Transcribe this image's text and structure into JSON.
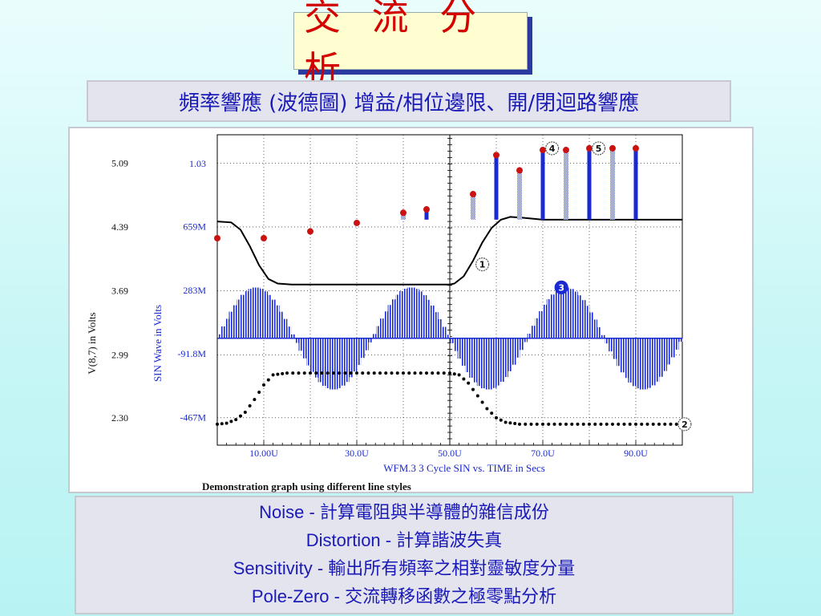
{
  "header": {
    "title": "交 流 分 析",
    "subtitle": "頻率響應 (波德圖) 增益/相位邊限、開/閉迴路響應"
  },
  "chart_data": {
    "type": "line",
    "title": "WFM.3   3 Cycle SIN vs. TIME in Secs",
    "caption": "Demonstration graph using different line styles",
    "xlabel": "",
    "x_ticks": [
      "10.00U",
      "30.0U",
      "50.0U",
      "70.0U",
      "90.0U"
    ],
    "x_tick_values": [
      10,
      30,
      50,
      70,
      90
    ],
    "xlim": [
      0,
      100
    ],
    "y_left": {
      "label": "V(8,7) in Volts",
      "ticks": [
        "5.09",
        "4.39",
        "3.69",
        "2.99",
        "2.30"
      ],
      "tick_values": [
        5.09,
        4.39,
        3.69,
        2.99,
        2.3
      ],
      "lim": [
        2.0,
        5.4
      ]
    },
    "y_right": {
      "label": "SIN Wave in Volts",
      "ticks": [
        "1.03",
        "659M",
        "283M",
        "-91.8M",
        "-467M"
      ],
      "tick_values": [
        1.03,
        0.659,
        0.283,
        -0.0918,
        -0.467
      ],
      "lim": [
        -0.63,
        1.2
      ]
    },
    "series": [
      {
        "name": "1",
        "style": "solid",
        "color": "#000000",
        "x": [
          0,
          3,
          5,
          7,
          9,
          11,
          13,
          16,
          20,
          30,
          40,
          50,
          51,
          53,
          55,
          57,
          59,
          61,
          63,
          66,
          70,
          80,
          90,
          100
        ],
        "y": [
          4.45,
          4.44,
          4.36,
          4.18,
          3.97,
          3.82,
          3.77,
          3.76,
          3.76,
          3.76,
          3.76,
          3.76,
          3.77,
          3.85,
          4.02,
          4.22,
          4.38,
          4.47,
          4.5,
          4.49,
          4.47,
          4.47,
          4.47,
          4.47
        ]
      },
      {
        "name": "2",
        "style": "dotted",
        "color": "#000000",
        "x": [
          0,
          2,
          4,
          6,
          8,
          10,
          12,
          15,
          20,
          30,
          40,
          50,
          52,
          54,
          56,
          58,
          60,
          62,
          65,
          70,
          80,
          90,
          100
        ],
        "y": [
          2.23,
          2.24,
          2.28,
          2.36,
          2.5,
          2.66,
          2.77,
          2.79,
          2.79,
          2.79,
          2.79,
          2.79,
          2.77,
          2.68,
          2.54,
          2.4,
          2.3,
          2.25,
          2.23,
          2.23,
          2.23,
          2.23,
          2.23
        ]
      },
      {
        "name": "3",
        "style": "hatched-bars",
        "color": "#1a2ad0",
        "amplitude": 0.3,
        "offset": 0.0,
        "cycles": 3,
        "period": 33.3
      },
      {
        "name": "4",
        "style": "solid-stems",
        "color": "#1a2ad0",
        "marker_color": "#cc1111",
        "x": [
          45,
          60,
          70,
          80,
          90
        ],
        "y": [
          0.76,
          1.08,
          1.11,
          1.12,
          1.12
        ]
      },
      {
        "name": "5",
        "style": "hatched-stems",
        "color": "#6677cc",
        "marker_color": "#cc1111",
        "x": [
          0,
          10,
          20,
          30,
          40,
          55,
          65,
          75,
          85
        ],
        "y": [
          0.59,
          0.59,
          0.63,
          0.68,
          0.74,
          0.85,
          0.99,
          1.11,
          1.12
        ]
      }
    ]
  },
  "notes": [
    {
      "en": "Noise",
      "zh": "計算電阻與半導體的雜信成份"
    },
    {
      "en": "Distortion",
      "zh": "計算諧波失真"
    },
    {
      "en": "Sensitivity",
      "zh": "輸出所有頻率之相對靈敏度分量"
    },
    {
      "en": "Pole-Zero",
      "zh": "交流轉移函數之極零點分析"
    }
  ],
  "colors": {
    "title_red": "#d40000",
    "text_blue": "#1a1ab8",
    "series_blue": "#1a2ad0",
    "marker_red": "#cc1111"
  }
}
